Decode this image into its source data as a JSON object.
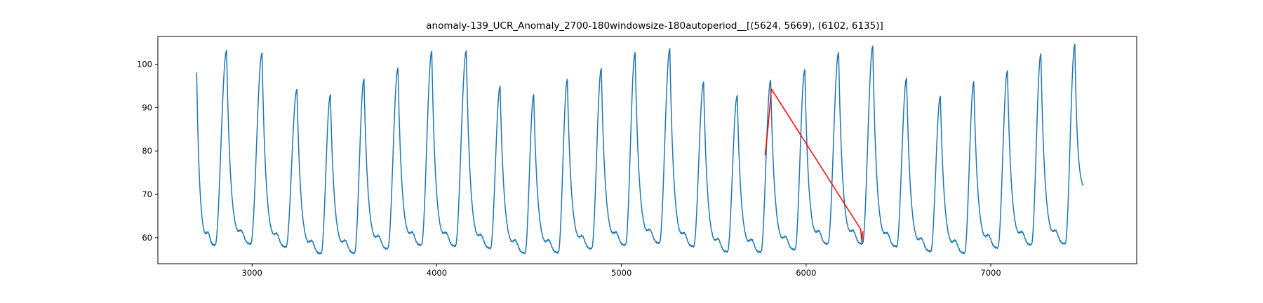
{
  "chart_data": {
    "type": "line",
    "title": "anomaly-139_UCR_Anomaly_2700-180windowsize-180autoperiod__[(5624, 5669), (6102, 6135)]",
    "xlabel": "",
    "ylabel": "",
    "xlim": [
      2490,
      7790
    ],
    "ylim": [
      54.0,
      106.4
    ],
    "xticks": [
      3000,
      4000,
      5000,
      6000,
      7000
    ],
    "yticks": [
      60,
      70,
      80,
      90,
      100
    ],
    "grid": false,
    "legend": "none",
    "series": [
      {
        "color": "#1f77b4",
        "cycles": [
          {
            "peak_x": 2862,
            "peak_y": 103.2,
            "trough_x": 2800,
            "trough_y": 58.2
          },
          {
            "peak_x": 3054,
            "peak_y": 102.6,
            "trough_x": 2993,
            "trough_y": 58.5
          },
          {
            "peak_x": 3243,
            "peak_y": 94.2,
            "trough_x": 3184,
            "trough_y": 57.8
          },
          {
            "peak_x": 3424,
            "peak_y": 93.0,
            "trough_x": 3374,
            "trough_y": 56.3
          },
          {
            "peak_x": 3606,
            "peak_y": 96.6,
            "trough_x": 3555,
            "trough_y": 56.4
          },
          {
            "peak_x": 3790,
            "peak_y": 99.1,
            "trough_x": 3735,
            "trough_y": 57.4
          },
          {
            "peak_x": 3973,
            "peak_y": 103.0,
            "trough_x": 3917,
            "trough_y": 58.2
          },
          {
            "peak_x": 4160,
            "peak_y": 103.1,
            "trough_x": 4101,
            "trough_y": 58.0
          },
          {
            "peak_x": 4343,
            "peak_y": 94.9,
            "trough_x": 4291,
            "trough_y": 57.5
          },
          {
            "peak_x": 4525,
            "peak_y": 93.0,
            "trough_x": 4478,
            "trough_y": 56.4
          },
          {
            "peak_x": 4707,
            "peak_y": 96.5,
            "trough_x": 4658,
            "trough_y": 56.5
          },
          {
            "peak_x": 4891,
            "peak_y": 99.0,
            "trough_x": 4839,
            "trough_y": 57.4
          },
          {
            "peak_x": 5074,
            "peak_y": 102.7,
            "trough_x": 5022,
            "trough_y": 58.2
          },
          {
            "peak_x": 5262,
            "peak_y": 103.6,
            "trough_x": 5206,
            "trough_y": 58.7
          },
          {
            "peak_x": 5445,
            "peak_y": 95.9,
            "trough_x": 5391,
            "trough_y": 57.9
          },
          {
            "peak_x": 5627,
            "peak_y": 92.8,
            "trough_x": 5574,
            "trough_y": 56.7
          },
          {
            "peak_x": 5808,
            "peak_y": 96.3,
            "trough_x": 5755,
            "trough_y": 56.6
          },
          {
            "peak_x": 5993,
            "peak_y": 98.8,
            "trough_x": 5940,
            "trough_y": 57.2
          },
          {
            "peak_x": 6176,
            "peak_y": 102.7,
            "trough_x": 6118,
            "trough_y": 58.5
          },
          {
            "peak_x": 6361,
            "peak_y": 104.2,
            "trough_x": 6305,
            "trough_y": 58.5
          },
          {
            "peak_x": 6544,
            "peak_y": 96.8,
            "trough_x": 6490,
            "trough_y": 57.9
          },
          {
            "peak_x": 6727,
            "peak_y": 92.6,
            "trough_x": 6675,
            "trough_y": 56.8
          },
          {
            "peak_x": 6908,
            "peak_y": 96.0,
            "trough_x": 6858,
            "trough_y": 56.4
          },
          {
            "peak_x": 7090,
            "peak_y": 98.5,
            "trough_x": 7038,
            "trough_y": 57.6
          },
          {
            "peak_x": 7271,
            "peak_y": 102.4,
            "trough_x": 7220,
            "trough_y": 58.3
          },
          {
            "peak_x": 7455,
            "peak_y": 104.6,
            "trough_x": 7403,
            "trough_y": 58.5
          }
        ],
        "start": [
          2700,
          98.1
        ],
        "end": [
          7500,
          70.7
        ]
      },
      {
        "color": "#ff0000",
        "points": [
          [
            5778,
            79.0
          ],
          [
            5795,
            86.0
          ],
          [
            5812,
            94.3
          ],
          [
            6295,
            62.0
          ],
          [
            6302,
            59.0
          ],
          [
            6307,
            61.5
          ]
        ]
      }
    ]
  }
}
